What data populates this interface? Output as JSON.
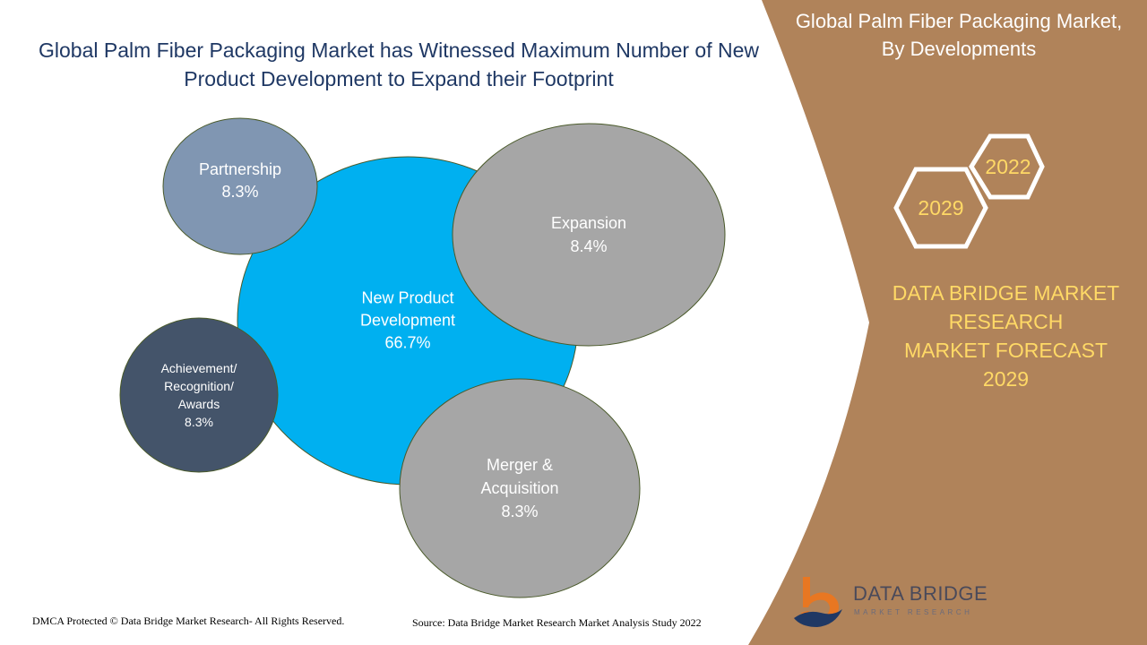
{
  "header": {
    "title_line1": "Global Palm Fiber Packaging Market has Witnessed Maximum Number of New",
    "title_line2": "Product Development to Expand their Footprint"
  },
  "side_panel": {
    "title_line1": "Global Palm Fiber Packaging Market,",
    "title_line2": "By Developments",
    "hex_years": [
      "2022",
      "2029"
    ],
    "forecast_lines": [
      "DATA BRIDGE MARKET",
      "RESEARCH",
      "MARKET FORECAST",
      "2029"
    ],
    "colors": {
      "panel": "#b0835a",
      "year_text": "#ffd966"
    }
  },
  "chart_data": {
    "type": "bubble",
    "title": "Global Palm Fiber Packaging Market has Witnessed Maximum Number of New Product Development to Expand their Footprint",
    "series": [
      {
        "name": "New Product Development",
        "label_lines": [
          "New Product",
          "Development"
        ],
        "value": 66.7,
        "value_label": "66.7%",
        "color": "#00b0f0"
      },
      {
        "name": "Partnership",
        "label_lines": [
          "Partnership"
        ],
        "value": 8.3,
        "value_label": "8.3%",
        "color": "#8096b2"
      },
      {
        "name": "Expansion",
        "label_lines": [
          "Expansion"
        ],
        "value": 8.4,
        "value_label": "8.4%",
        "color": "#a6a6a6"
      },
      {
        "name": "Achievement/ Recognition/ Awards",
        "label_lines": [
          "Achievement/",
          "Recognition/",
          "Awards"
        ],
        "value": 8.3,
        "value_label": "8.3%",
        "color": "#44546a"
      },
      {
        "name": "Merger & Acquisition",
        "label_lines": [
          "Merger &",
          "Acquisition"
        ],
        "value": 8.3,
        "value_label": "8.3%",
        "color": "#a6a6a6"
      }
    ]
  },
  "footer": {
    "copyright": "DMCA Protected © Data Bridge Market Research- All Rights Reserved.",
    "source": "Source: Data Bridge Market Research Market Analysis Study 2022"
  },
  "logo": {
    "name": "DATA BRIDGE",
    "tagline": "MARKET RESEARCH"
  }
}
